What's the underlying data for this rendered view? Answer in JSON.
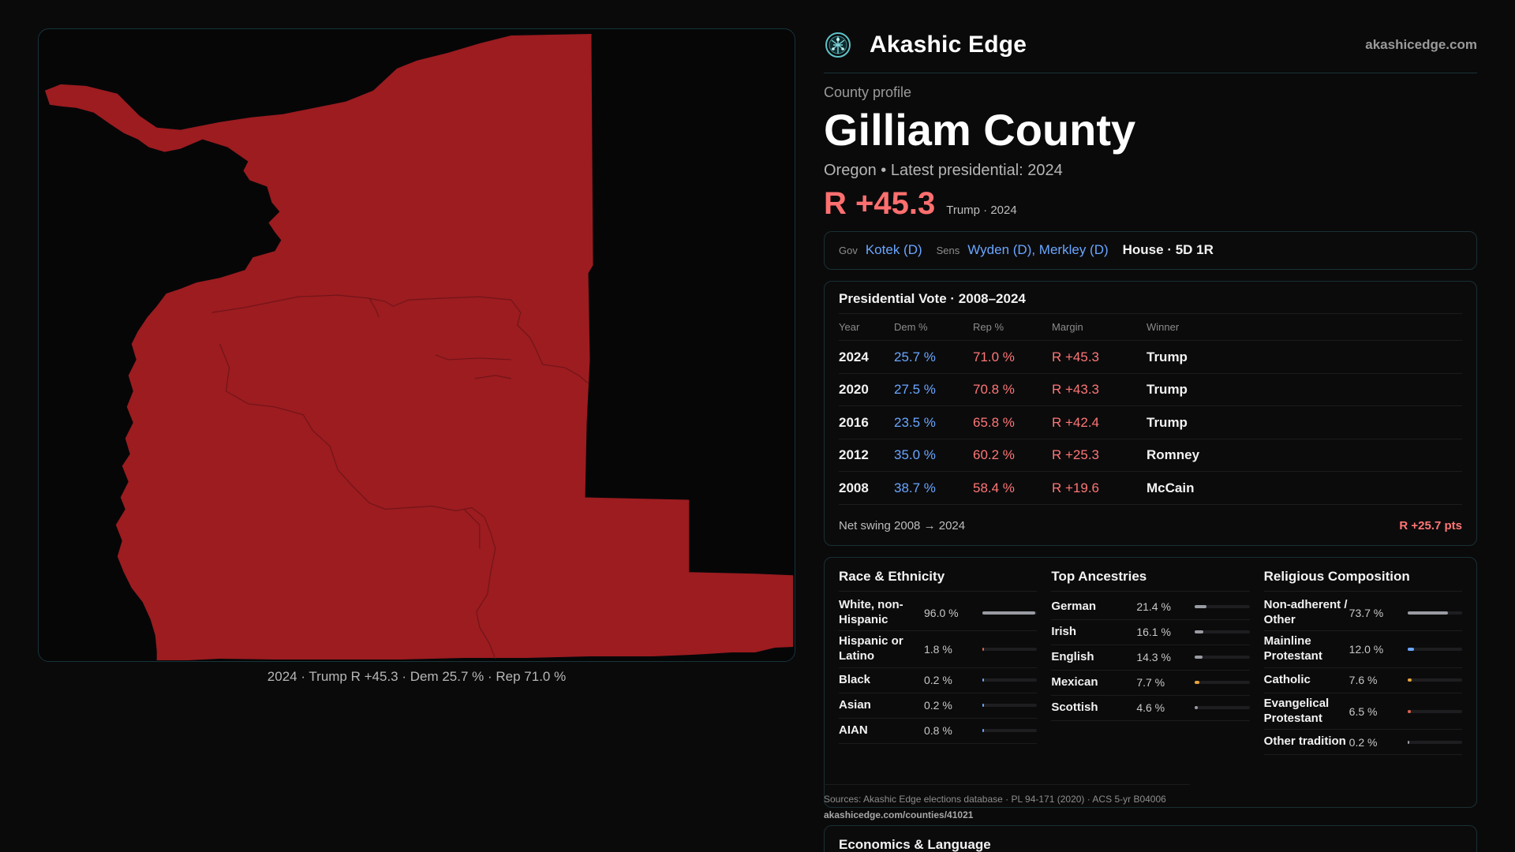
{
  "map": {
    "caption": "2024 · Trump R +45.3 · Dem 25.7 % · Rep 71.0 %",
    "fill_color": "#9c1c20"
  },
  "header": {
    "brand": "Akashic Edge",
    "domain": "akashicedge.com",
    "logo_icon": "network-globe-icon"
  },
  "profile": {
    "eyebrow": "County profile",
    "name": "Gilliam County",
    "subtitle": "Oregon • Latest presidential: 2024",
    "margin": "R +45.3",
    "margin_note": "Trump · 2024"
  },
  "officials": {
    "gov_key": "Gov",
    "gov": "Kotek (D)",
    "sens_key": "Sens",
    "sens": "Wyden (D), Merkley (D)",
    "house": "House · 5D 1R"
  },
  "presidential": {
    "title": "Presidential Vote · 2008–2024",
    "headers": [
      "Year",
      "Dem %",
      "Rep %",
      "Margin",
      "Winner"
    ],
    "rows": [
      {
        "year": "2024",
        "dem": "25.7 %",
        "rep": "71.0 %",
        "margin": "R +45.3",
        "winner": "Trump"
      },
      {
        "year": "2020",
        "dem": "27.5 %",
        "rep": "70.8 %",
        "margin": "R +43.3",
        "winner": "Trump"
      },
      {
        "year": "2016",
        "dem": "23.5 %",
        "rep": "65.8 %",
        "margin": "R +42.4",
        "winner": "Trump"
      },
      {
        "year": "2012",
        "dem": "35.0 %",
        "rep": "60.2 %",
        "margin": "R +25.3",
        "winner": "Romney"
      },
      {
        "year": "2008",
        "dem": "38.7 %",
        "rep": "58.4 %",
        "margin": "R +19.6",
        "winner": "McCain"
      }
    ],
    "swing_label": "Net swing 2008 → 2024",
    "swing_value": "R +25.7 pts"
  },
  "race": {
    "title": "Race & Ethnicity",
    "rows": [
      {
        "label": "White, non-Hispanic",
        "value": "96.0 %",
        "fraction": 0.96,
        "color": "#9a9ca3"
      },
      {
        "label": "Hispanic or Latino",
        "value": "1.8 %",
        "fraction": 0.018,
        "color": "#e0614c"
      },
      {
        "label": "Black",
        "value": "0.2 %",
        "fraction": 0.002,
        "color": "#6aa6ff"
      },
      {
        "label": "Asian",
        "value": "0.2 %",
        "fraction": 0.002,
        "color": "#6aa6ff"
      },
      {
        "label": "AIAN",
        "value": "0.8 %",
        "fraction": 0.008,
        "color": "#6aa6ff"
      }
    ]
  },
  "ancestry": {
    "title": "Top Ancestries",
    "rows": [
      {
        "label": "German",
        "value": "21.4 %",
        "fraction": 0.214,
        "color": "#9a9ca3"
      },
      {
        "label": "Irish",
        "value": "16.1 %",
        "fraction": 0.161,
        "color": "#9a9ca3"
      },
      {
        "label": "English",
        "value": "14.3 %",
        "fraction": 0.143,
        "color": "#9a9ca3"
      },
      {
        "label": "Mexican",
        "value": "7.7 %",
        "fraction": 0.077,
        "color": "#e6a23c"
      },
      {
        "label": "Scottish",
        "value": "4.6 %",
        "fraction": 0.046,
        "color": "#9a9ca3"
      }
    ]
  },
  "religion": {
    "title": "Religious Composition",
    "rows": [
      {
        "label": "Non-adherent / Other",
        "value": "73.7 %",
        "fraction": 0.737,
        "color": "#9a9ca3"
      },
      {
        "label": "Mainline Protestant",
        "value": "12.0 %",
        "fraction": 0.12,
        "color": "#6aa6ff"
      },
      {
        "label": "Catholic",
        "value": "7.6 %",
        "fraction": 0.076,
        "color": "#e6a23c"
      },
      {
        "label": "Evangelical Protestant",
        "value": "6.5 %",
        "fraction": 0.065,
        "color": "#e0614c"
      },
      {
        "label": "Other tradition",
        "value": "0.2 %",
        "fraction": 0.002,
        "color": "#9a9ca3"
      }
    ]
  },
  "sources": {
    "text": "Sources: Akashic Edge elections database · PL 94-171 (2020) · ACS 5-yr B04006",
    "url": "akashicedge.com/counties/41021"
  },
  "economics": {
    "title": "Economics & Language"
  }
}
